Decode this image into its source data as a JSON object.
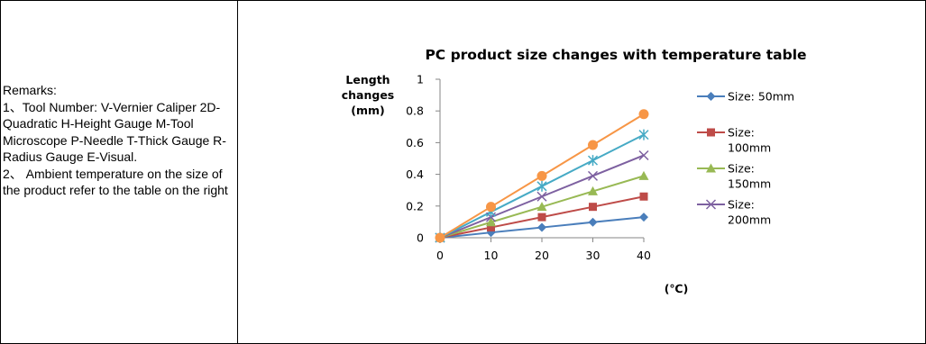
{
  "remarks": {
    "heading": "Remarks:",
    "item1": "1、Tool Number: V-Vernier Caliper 2D-Quadratic H-Height Gauge M-Tool Microscope P-Needle T-Thick Gauge R-Radius Gauge E-Visual.",
    "item2": "2、 Ambient temperature on the size of the product refer to the table on the right"
  },
  "chart_data": {
    "type": "line",
    "title": "PC product size changes with temperature table",
    "ylabel_lines": [
      "Length",
      "changes",
      "(mm)"
    ],
    "xlabel": "(℃)",
    "x": [
      0,
      10,
      20,
      30,
      40
    ],
    "x_ticks": [
      "0",
      "10",
      "20",
      "30",
      "40"
    ],
    "y_ticks": [
      "0",
      "0.2",
      "0.4",
      "0.6",
      "0.8",
      "1"
    ],
    "ylim": [
      0,
      1
    ],
    "grid": false,
    "legend_position": "right",
    "series": [
      {
        "name": "Size: 50mm",
        "legend_lines": [
          "Size:  50mm"
        ],
        "color": "#4a7ebb",
        "marker": "diamond",
        "values": [
          0,
          0.033,
          0.065,
          0.098,
          0.13
        ]
      },
      {
        "name": "Size: 100mm",
        "legend_lines": [
          "Size:",
          "100mm"
        ],
        "color": "#be4b48",
        "marker": "square",
        "values": [
          0,
          0.065,
          0.13,
          0.195,
          0.26
        ]
      },
      {
        "name": "Size: 150mm",
        "legend_lines": [
          "Size:",
          "150mm"
        ],
        "color": "#98b954",
        "marker": "triangle",
        "values": [
          0,
          0.098,
          0.195,
          0.293,
          0.39
        ]
      },
      {
        "name": "Size: 200mm",
        "legend_lines": [
          "Size:",
          "200mm"
        ],
        "color": "#7d60a0",
        "marker": "x",
        "values": [
          0,
          0.13,
          0.26,
          0.39,
          0.52
        ]
      },
      {
        "name": "",
        "legend_lines": [],
        "color": "#46aac5",
        "marker": "star",
        "values": [
          0,
          0.163,
          0.325,
          0.488,
          0.65
        ]
      },
      {
        "name": "",
        "legend_lines": [],
        "color": "#f79646",
        "marker": "circle",
        "values": [
          0,
          0.195,
          0.39,
          0.585,
          0.78
        ]
      }
    ]
  }
}
